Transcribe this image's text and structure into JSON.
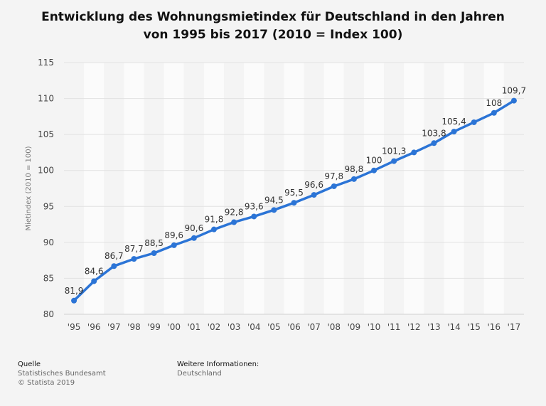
{
  "chart_data": {
    "type": "line",
    "title_line1": "Entwicklung des Wohnungsmietindex für Deutschland in den Jahren",
    "title_line2": "von 1995 bis 2017 (2010 = Index 100)",
    "xlabel": "",
    "ylabel": "Mietindex (2010 = 100)",
    "categories": [
      "'95",
      "'96",
      "'97",
      "'98",
      "'99",
      "'00",
      "'01",
      "'02",
      "'03",
      "'04",
      "'05",
      "'06",
      "'07",
      "'08",
      "'09",
      "'10",
      "'11",
      "'12",
      "'13",
      "'14",
      "'15",
      "'16",
      "'17"
    ],
    "values": [
      81.9,
      84.6,
      86.7,
      87.7,
      88.5,
      89.6,
      90.6,
      91.8,
      92.8,
      93.6,
      94.5,
      95.5,
      96.6,
      97.8,
      98.8,
      100,
      101.3,
      102.5,
      103.8,
      105.4,
      106.7,
      108,
      109.7
    ],
    "labels": [
      "81,9",
      "84,6",
      "86,7",
      "87,7",
      "88,5",
      "89,6",
      "90,6",
      "91,8",
      "92,8",
      "93,6",
      "94,5",
      "95,5",
      "96,6",
      "97,8",
      "98,8",
      "100",
      "101,3",
      "",
      "103,8",
      "105,4",
      "",
      "108",
      "109,7"
    ],
    "ylim": [
      80,
      115
    ],
    "yticks": [
      80,
      85,
      90,
      95,
      100,
      105,
      110,
      115
    ],
    "grid": true,
    "line_color": "#2b74d6"
  },
  "footer": {
    "source_heading": "Quelle",
    "source_name": "Statistisches Bundesamt",
    "copyright": "© Statista 2019",
    "info_heading": "Weitere Informationen:",
    "info_value": "Deutschland"
  }
}
